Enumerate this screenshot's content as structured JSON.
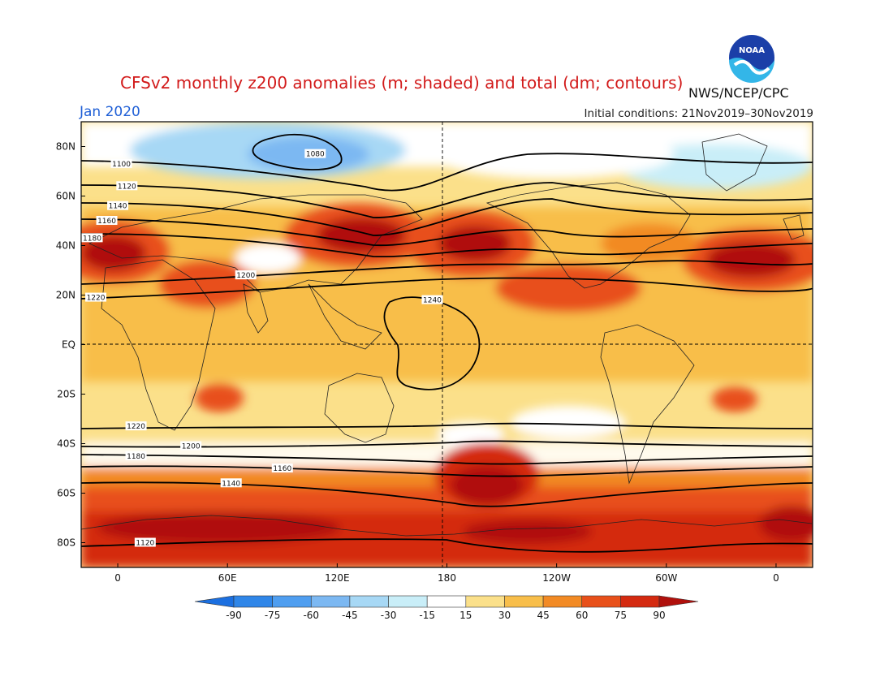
{
  "header": {
    "title": "CFSv2 monthly z200 anomalies (m; shaded) and total (dm; contours)",
    "month": "Jan 2020",
    "initial_conditions": "Initial conditions: 21Nov2019–30Nov2019",
    "agency": "NWS/NCEP/CPC",
    "logo_text": "NOAA"
  },
  "map": {
    "lat_labels": [
      "80N",
      "60N",
      "40N",
      "20N",
      "EQ",
      "20S",
      "40S",
      "60S",
      "80S"
    ],
    "lat_values": [
      80,
      60,
      40,
      20,
      0,
      -20,
      -40,
      -60,
      -80
    ],
    "lon_labels": [
      "0",
      "60E",
      "120E",
      "180",
      "120W",
      "60W",
      "0"
    ],
    "lon_values": [
      0,
      60,
      120,
      180,
      240,
      300,
      360
    ],
    "lon_range": [
      -20,
      380
    ],
    "lat_range": [
      -90,
      90
    ],
    "contours": [
      {
        "label": "1100",
        "lat": 73,
        "x_label_lon": 2
      },
      {
        "label": "1120",
        "lat": 64,
        "x_label_lon": 5
      },
      {
        "label": "1140",
        "lat": 56,
        "x_label_lon": 0
      },
      {
        "label": "1160",
        "lat": 50,
        "x_label_lon": -6
      },
      {
        "label": "1180",
        "lat": 43,
        "x_label_lon": -14
      },
      {
        "label": "1200",
        "lat": 28,
        "x_label_lon": 70
      },
      {
        "label": "1220",
        "lat": 19,
        "x_label_lon": -12
      },
      {
        "label": "1240",
        "lat": 18,
        "x_label_lon": 172
      },
      {
        "label": "1080",
        "lat": 77,
        "x_label_lon": 108
      },
      {
        "label": "1220",
        "lat": -33,
        "x_label_lon": 10
      },
      {
        "label": "1200",
        "lat": -41,
        "x_label_lon": 40
      },
      {
        "label": "1180",
        "lat": -45,
        "x_label_lon": 10
      },
      {
        "label": "1160",
        "lat": -50,
        "x_label_lon": 90
      },
      {
        "label": "1140",
        "lat": -56,
        "x_label_lon": 62
      },
      {
        "label": "1120",
        "lat": -80,
        "x_label_lon": 15
      }
    ],
    "colorbar": {
      "labels": [
        "-90",
        "-75",
        "-60",
        "-45",
        "-30",
        "-15",
        "15",
        "30",
        "45",
        "60",
        "75",
        "90"
      ],
      "colors": [
        "#1b6fe0",
        "#2f86e8",
        "#4f9ef0",
        "#7cb8f2",
        "#a7d8f5",
        "#c9eef8",
        "#ffffff",
        "#fbe08a",
        "#f8be4a",
        "#f28a24",
        "#e8501a",
        "#d42a10",
        "#b0100c"
      ]
    }
  }
}
